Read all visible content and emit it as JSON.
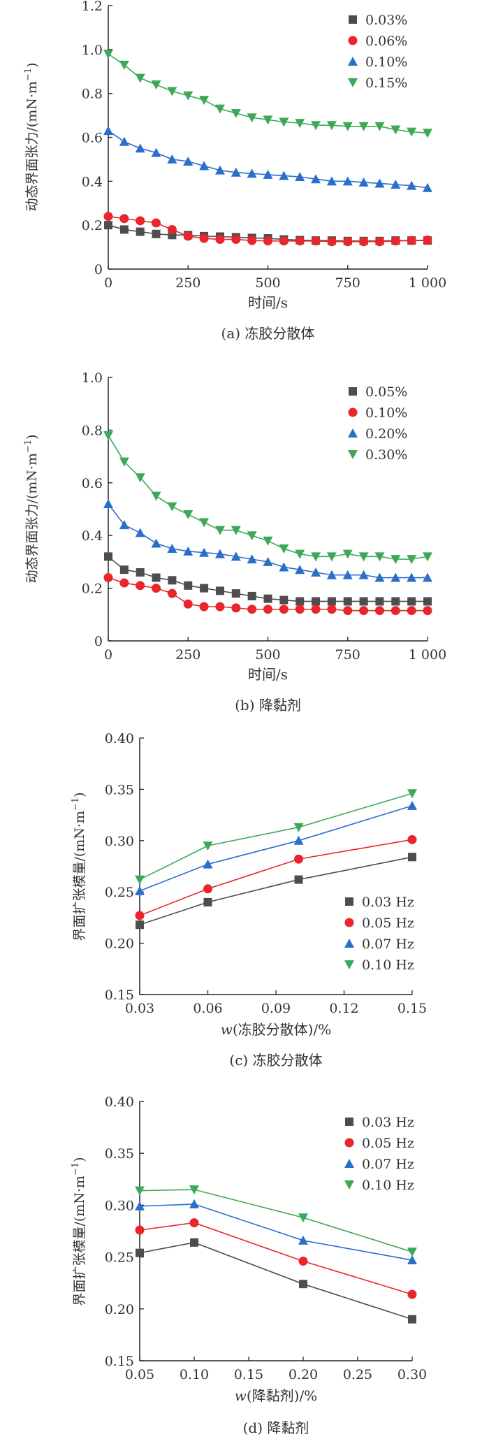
{
  "chart_data": [
    {
      "type": "line",
      "caption": "(a) 冻胶分散体",
      "xlabel": "时间/s",
      "ylabel": "动态界面张力/(mN·m",
      "ylabel_sup": "−1",
      "ylabel_close": ")",
      "xlim": [
        0,
        1000
      ],
      "ylim": [
        0,
        1.2
      ],
      "xticks": [
        0,
        250,
        500,
        750,
        1000
      ],
      "xtick_labels": [
        "0",
        "250",
        "500",
        "750",
        "1 000"
      ],
      "yticks": [
        0,
        0.2,
        0.4,
        0.6,
        0.8,
        1.0,
        1.2
      ],
      "ytick_labels": [
        "0",
        "0.2",
        "0.4",
        "0.6",
        "0.8",
        "1.0",
        "1.2"
      ],
      "legend_position": "top-right",
      "x": [
        0,
        50,
        100,
        150,
        200,
        250,
        300,
        350,
        400,
        450,
        500,
        550,
        600,
        650,
        700,
        750,
        800,
        850,
        900,
        950,
        1000
      ],
      "series": [
        {
          "name": "0.03%",
          "marker": "square",
          "color": "#4d4d4d",
          "values": [
            0.2,
            0.18,
            0.17,
            0.16,
            0.155,
            0.155,
            0.15,
            0.148,
            0.145,
            0.142,
            0.14,
            0.135,
            0.132,
            0.13,
            0.13,
            0.128,
            0.128,
            0.128,
            0.13,
            0.13,
            0.13
          ]
        },
        {
          "name": "0.06%",
          "marker": "circle",
          "color": "#e8262b",
          "values": [
            0.24,
            0.23,
            0.22,
            0.21,
            0.18,
            0.15,
            0.14,
            0.135,
            0.135,
            0.13,
            0.128,
            0.128,
            0.128,
            0.128,
            0.125,
            0.125,
            0.125,
            0.125,
            0.128,
            0.13,
            0.132
          ]
        },
        {
          "name": "0.10%",
          "marker": "triangle-up",
          "color": "#2a6fc9",
          "values": [
            0.63,
            0.58,
            0.55,
            0.53,
            0.5,
            0.49,
            0.47,
            0.45,
            0.44,
            0.435,
            0.43,
            0.425,
            0.42,
            0.41,
            0.4,
            0.4,
            0.395,
            0.39,
            0.385,
            0.38,
            0.37
          ]
        },
        {
          "name": "0.15%",
          "marker": "triangle-down",
          "color": "#3da85a",
          "values": [
            0.98,
            0.93,
            0.87,
            0.84,
            0.81,
            0.79,
            0.77,
            0.73,
            0.71,
            0.69,
            0.68,
            0.67,
            0.665,
            0.655,
            0.655,
            0.65,
            0.65,
            0.65,
            0.635,
            0.625,
            0.62
          ]
        }
      ]
    },
    {
      "type": "line",
      "caption": "(b) 降黏剂",
      "xlabel": "时间/s",
      "ylabel": "动态界面张力/(mN·m",
      "ylabel_sup": "−1",
      "ylabel_close": ")",
      "xlim": [
        0,
        1000
      ],
      "ylim": [
        0,
        1.0
      ],
      "xticks": [
        0,
        250,
        500,
        750,
        1000
      ],
      "xtick_labels": [
        "0",
        "250",
        "500",
        "750",
        "1 000"
      ],
      "yticks": [
        0,
        0.2,
        0.4,
        0.6,
        0.8,
        1.0
      ],
      "ytick_labels": [
        "0",
        "0.2",
        "0.4",
        "0.6",
        "0.8",
        "1.0"
      ],
      "legend_position": "top-right",
      "x": [
        0,
        50,
        100,
        150,
        200,
        250,
        300,
        350,
        400,
        450,
        500,
        550,
        600,
        650,
        700,
        750,
        800,
        850,
        900,
        950,
        1000
      ],
      "series": [
        {
          "name": "0.05%",
          "marker": "square",
          "color": "#4d4d4d",
          "values": [
            0.32,
            0.27,
            0.26,
            0.24,
            0.23,
            0.21,
            0.2,
            0.19,
            0.18,
            0.17,
            0.16,
            0.155,
            0.15,
            0.15,
            0.15,
            0.15,
            0.15,
            0.15,
            0.15,
            0.15,
            0.15
          ]
        },
        {
          "name": "0.10%",
          "marker": "circle",
          "color": "#e8262b",
          "values": [
            0.24,
            0.22,
            0.21,
            0.2,
            0.18,
            0.14,
            0.13,
            0.13,
            0.125,
            0.12,
            0.12,
            0.12,
            0.12,
            0.12,
            0.12,
            0.115,
            0.115,
            0.115,
            0.115,
            0.115,
            0.115
          ]
        },
        {
          "name": "0.20%",
          "marker": "triangle-up",
          "color": "#2a6fc9",
          "values": [
            0.52,
            0.44,
            0.41,
            0.37,
            0.35,
            0.34,
            0.335,
            0.33,
            0.32,
            0.31,
            0.3,
            0.28,
            0.27,
            0.26,
            0.25,
            0.25,
            0.25,
            0.24,
            0.24,
            0.24,
            0.24
          ]
        },
        {
          "name": "0.30%",
          "marker": "triangle-down",
          "color": "#3da85a",
          "values": [
            0.78,
            0.68,
            0.62,
            0.55,
            0.51,
            0.48,
            0.45,
            0.42,
            0.42,
            0.4,
            0.38,
            0.35,
            0.33,
            0.32,
            0.32,
            0.33,
            0.32,
            0.32,
            0.31,
            0.31,
            0.32
          ]
        }
      ]
    },
    {
      "type": "line",
      "caption": "(c) 冻胶分散体",
      "xlabel_italic": "w",
      "xlabel": "(冻胶分散体)/%",
      "ylabel": "界面扩张模量/(mN·m",
      "ylabel_sup": "−1",
      "ylabel_close": ")",
      "xlim": [
        0.03,
        0.15
      ],
      "ylim": [
        0.15,
        0.4
      ],
      "xticks": [
        0.03,
        0.06,
        0.09,
        0.12,
        0.15
      ],
      "xtick_labels": [
        "0.03",
        "0.06",
        "0.09",
        "0.12",
        "0.15"
      ],
      "yticks": [
        0.15,
        0.2,
        0.25,
        0.3,
        0.35,
        0.4
      ],
      "ytick_labels": [
        "0.15",
        "0.20",
        "0.25",
        "0.30",
        "0.35",
        "0.40"
      ],
      "legend_position": "bottom-right",
      "x": [
        0.03,
        0.06,
        0.1,
        0.15
      ],
      "series": [
        {
          "name": "0.03 Hz",
          "marker": "square",
          "color": "#4d4d4d",
          "values": [
            0.218,
            0.24,
            0.262,
            0.284
          ]
        },
        {
          "name": "0.05 Hz",
          "marker": "circle",
          "color": "#e8262b",
          "values": [
            0.227,
            0.253,
            0.282,
            0.301
          ]
        },
        {
          "name": "0.07 Hz",
          "marker": "triangle-up",
          "color": "#2a6fc9",
          "values": [
            0.251,
            0.277,
            0.3,
            0.334
          ]
        },
        {
          "name": "0.10 Hz",
          "marker": "triangle-down",
          "color": "#3da85a",
          "values": [
            0.262,
            0.295,
            0.313,
            0.346
          ]
        }
      ]
    },
    {
      "type": "line",
      "caption": "(d) 降黏剂",
      "xlabel_italic": "w",
      "xlabel": "(降黏剂)/%",
      "ylabel": "界面扩张模量/(mN·m",
      "ylabel_sup": "−1",
      "ylabel_close": ")",
      "xlim": [
        0.05,
        0.3
      ],
      "ylim": [
        0.15,
        0.4
      ],
      "xticks": [
        0.05,
        0.1,
        0.15,
        0.2,
        0.25,
        0.3
      ],
      "xtick_labels": [
        "0.05",
        "0.10",
        "0.15",
        "0.20",
        "0.25",
        "0.30"
      ],
      "yticks": [
        0.15,
        0.2,
        0.25,
        0.3,
        0.35,
        0.4
      ],
      "ytick_labels": [
        "0.15",
        "0.20",
        "0.25",
        "0.30",
        "0.35",
        "0.40"
      ],
      "legend_position": "top-right",
      "x": [
        0.05,
        0.1,
        0.2,
        0.3
      ],
      "series": [
        {
          "name": "0.03 Hz",
          "marker": "square",
          "color": "#4d4d4d",
          "values": [
            0.254,
            0.264,
            0.224,
            0.19
          ]
        },
        {
          "name": "0.05 Hz",
          "marker": "circle",
          "color": "#e8262b",
          "values": [
            0.276,
            0.283,
            0.246,
            0.214
          ]
        },
        {
          "name": "0.07 Hz",
          "marker": "triangle-up",
          "color": "#2a6fc9",
          "values": [
            0.299,
            0.301,
            0.266,
            0.247
          ]
        },
        {
          "name": "0.10 Hz",
          "marker": "triangle-down",
          "color": "#3da85a",
          "values": [
            0.314,
            0.315,
            0.288,
            0.255
          ]
        }
      ]
    }
  ]
}
